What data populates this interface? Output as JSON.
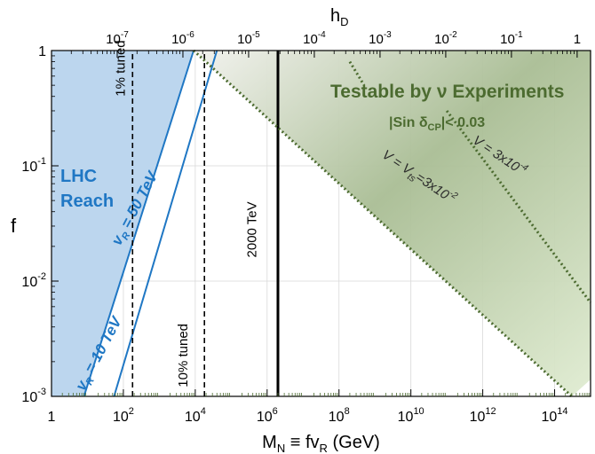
{
  "chart_data": {
    "type": "line",
    "xlabel": "M",
    "xlabel_sub": "N",
    "xlabel_mid": " ≡ fv",
    "xlabel_sub2": "R",
    "xlabel_unit": " (GeV)",
    "ylabel": "f",
    "top_axis_label": "h",
    "top_axis_label_sub": "D",
    "x_scale": "log",
    "y_scale": "log",
    "xlim": [
      1,
      1000000000000000.0
    ],
    "ylim": [
      0.001,
      1
    ],
    "top_xlim": [
      1e-08,
      1.6
    ],
    "grid": true,
    "x_ticks": [
      {
        "value": 1,
        "label": "1"
      },
      {
        "value": 100,
        "label": "10",
        "exp": "2"
      },
      {
        "value": 10000,
        "label": "10",
        "exp": "4"
      },
      {
        "value": 1000000,
        "label": "10",
        "exp": "6"
      },
      {
        "value": 100000000,
        "label": "10",
        "exp": "8"
      },
      {
        "value": 10000000000,
        "label": "10",
        "exp": "10"
      },
      {
        "value": 1000000000000,
        "label": "10",
        "exp": "12"
      },
      {
        "value": 100000000000000,
        "label": "10",
        "exp": "14"
      }
    ],
    "y_ticks": [
      {
        "value": 1,
        "label": "1"
      },
      {
        "value": 0.1,
        "label": "10",
        "exp": "-1"
      },
      {
        "value": 0.01,
        "label": "10",
        "exp": "-2"
      },
      {
        "value": 0.001,
        "label": "10",
        "exp": "-3"
      }
    ],
    "top_ticks": [
      {
        "value": 1e-07,
        "label": "10",
        "exp": "-7"
      },
      {
        "value": 1e-06,
        "label": "10",
        "exp": "-6"
      },
      {
        "value": 1e-05,
        "label": "10",
        "exp": "-5"
      },
      {
        "value": 0.0001,
        "label": "10",
        "exp": "-4"
      },
      {
        "value": 0.001,
        "label": "10",
        "exp": "-3"
      },
      {
        "value": 0.01,
        "label": "10",
        "exp": "-2"
      },
      {
        "value": 0.1,
        "label": "10",
        "exp": "-1"
      },
      {
        "value": 1,
        "label": "1"
      }
    ],
    "regions": [
      {
        "name": "lhc-reach",
        "label_lines": [
          "LHC",
          "Reach"
        ],
        "color": "#bcd6ee",
        "polygon": [
          [
            1,
            0.001
          ],
          [
            8,
            0.001
          ],
          [
            9000,
            1
          ],
          [
            1,
            1
          ]
        ]
      },
      {
        "name": "nu-experiments",
        "label": "Testable by ν Experiments",
        "sublabel_pre": "|Sin δ",
        "sublabel_sub": "CP",
        "sublabel_post": "|< 0.03",
        "color_light": "#e6eadc",
        "color_dark": "#6b8a55",
        "polygon": [
          [
            9000,
            1
          ],
          [
            1000000000000000.0,
            1
          ],
          [
            1000000000000000.0,
            0.0014
          ],
          [
            300000000000000.0,
            0.001
          ]
        ]
      }
    ],
    "series": [
      {
        "name": "vR = 10 TeV",
        "label_base": "v",
        "label_sub": "R",
        "label_rest": " = 10 TeV",
        "color": "#1f77c4",
        "style": "solid",
        "points": [
          [
            8,
            0.001
          ],
          [
            9000,
            1
          ]
        ],
        "label_at": [
          8,
          0.0011
        ],
        "label_angle": -62
      },
      {
        "name": "vR = 50 TeV",
        "label_base": "v",
        "label_sub": "R",
        "label_rest": " = 50 TeV",
        "color": "#1f77c4",
        "style": "solid",
        "points": [
          [
            55,
            0.001
          ],
          [
            40000,
            1
          ]
        ],
        "label_at": [
          80,
          0.02
        ],
        "label_angle": -62
      },
      {
        "name": "1% tuned",
        "color": "#000000",
        "style": "dashed",
        "points": [
          [
            180,
            0.001
          ],
          [
            180,
            1
          ]
        ],
        "label_at": [
          110,
          0.4
        ],
        "label_angle": -90
      },
      {
        "name": "10% tuned",
        "color": "#000000",
        "style": "dashed",
        "points": [
          [
            18000,
            0.001
          ],
          [
            18000,
            1
          ]
        ],
        "label_at": [
          6000,
          0.0012
        ],
        "label_angle": -90
      },
      {
        "name": "2000 TeV",
        "color": "#000000",
        "style": "solid-thick",
        "points": [
          [
            2000000,
            0.001
          ],
          [
            2000000,
            1
          ]
        ],
        "label_at": [
          500000,
          0.016
        ],
        "label_angle": -90
      },
      {
        "name": "V = Vts=3x10-2",
        "label_base": "V = V",
        "label_sub": "ts",
        "label_mid": "=3x10",
        "label_exp": "-2",
        "color": "#4c6b30",
        "style": "dotted",
        "points": [
          [
            9000,
            1
          ],
          [
            300000000000000.0,
            0.001
          ]
        ],
        "label_at": [
          1500000000.0,
          0.12
        ],
        "label_angle": 34
      },
      {
        "name": "V = 3x10-4",
        "label_base": "V = 3x10",
        "label_exp": "-4",
        "color": "#4c6b30",
        "style": "dotted",
        "points": [
          [
            100000000000.0,
            0.3
          ],
          [
            1000000000000000.0,
            0.0065
          ]
        ],
        "label_at": [
          500000000000.0,
          0.16
        ],
        "label_angle": 34
      },
      {
        "name": "V = 3x10-4 upper",
        "color": "#4c6b30",
        "style": "dotted",
        "points": [
          [
            200000000.0,
            0.8
          ],
          [
            500000000.0,
            0.5
          ]
        ]
      }
    ]
  }
}
